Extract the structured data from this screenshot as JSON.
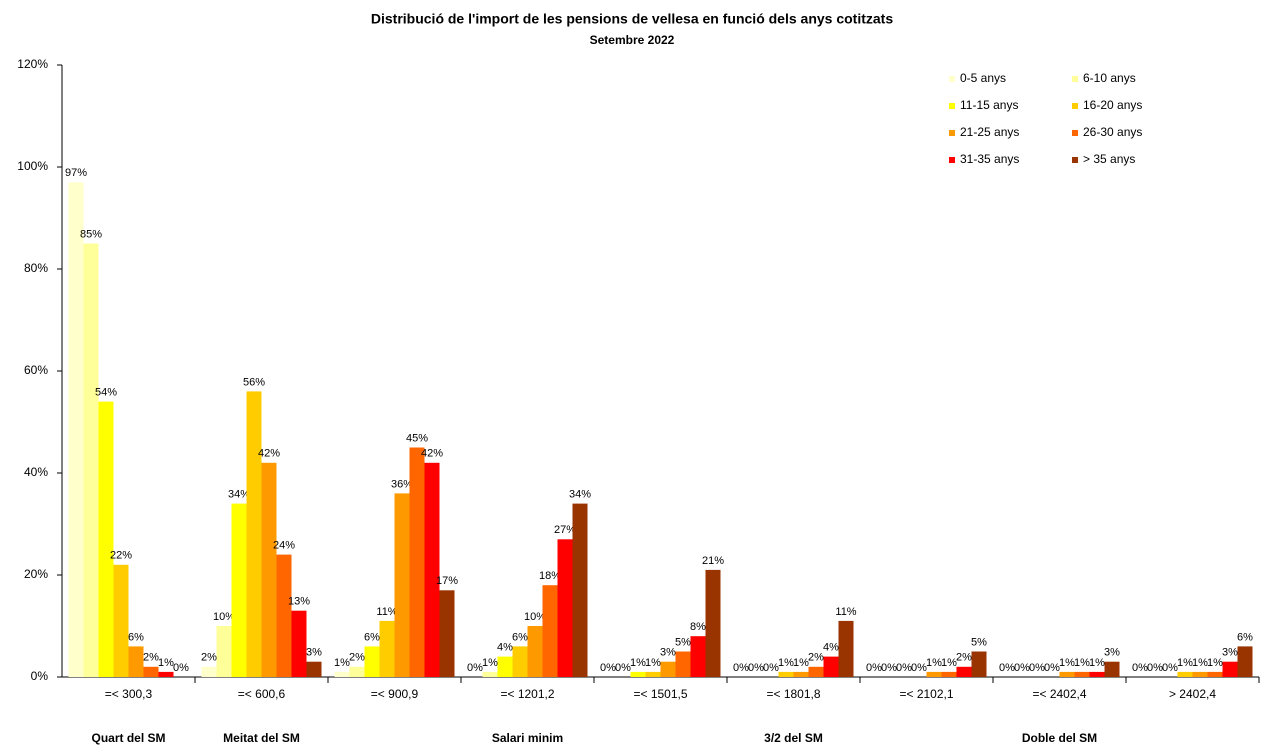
{
  "chart_data": {
    "type": "bar",
    "title": "Distribució de l'import de les pensions de vellesa en funció dels anys cotitzats",
    "subtitle": "Setembre 2022",
    "categories": [
      "=< 300,3",
      "=< 600,6",
      "=< 900,9",
      "=< 1201,2",
      "=< 1501,5",
      "=< 1801,8",
      "=< 2102,1",
      "=< 2402,4",
      "> 2402,4"
    ],
    "group_labels": [
      "Quart del SM",
      "Meitat del SM",
      null,
      "Salari minim",
      null,
      "3/2 del SM",
      null,
      "Doble del SM",
      null
    ],
    "series": [
      {
        "name": "0-5 anys",
        "color": "#ffffcc",
        "values": [
          97,
          2,
          1,
          0,
          0,
          0,
          0,
          0,
          0
        ],
        "value_labels": [
          "97%",
          "2%",
          "1%",
          "0%",
          "0%",
          "0%",
          "0%",
          "0%",
          "0%"
        ]
      },
      {
        "name": "6-10 anys",
        "color": "#ffff99",
        "values": [
          85,
          10,
          2,
          1,
          0,
          0,
          0,
          0,
          0
        ],
        "value_labels": [
          "85%",
          "10%",
          "2%",
          "1%",
          "0%",
          "0%",
          "0%",
          "0%",
          "0%"
        ]
      },
      {
        "name": "11-15 anys",
        "color": "#ffff00",
        "values": [
          54,
          34,
          6,
          4,
          1,
          0,
          0,
          0,
          0
        ],
        "value_labels": [
          "54%",
          "34%",
          "6%",
          "4%",
          "1%",
          "0%",
          "0%",
          "0%",
          "0%"
        ]
      },
      {
        "name": "16-20 anys",
        "color": "#ffcc00",
        "values": [
          22,
          56,
          11,
          6,
          1,
          1,
          0,
          0,
          1
        ],
        "value_labels": [
          "22%",
          "56%",
          "11%",
          "6%",
          "1%",
          "1%",
          "0%",
          "0%",
          "1%"
        ]
      },
      {
        "name": "21-25 anys",
        "color": "#ff9900",
        "values": [
          6,
          42,
          36,
          10,
          3,
          1,
          1,
          1,
          1
        ],
        "value_labels": [
          "6%",
          "42%",
          "36%",
          "10%",
          "3%",
          "1%",
          "1%",
          "1%",
          "1%"
        ]
      },
      {
        "name": "26-30 anys",
        "color": "#ff6600",
        "values": [
          2,
          24,
          45,
          18,
          5,
          2,
          1,
          1,
          1
        ],
        "value_labels": [
          "2%",
          "24%",
          "45%",
          "18%",
          "5%",
          "2%",
          "1%",
          "1%",
          "1%"
        ]
      },
      {
        "name": "31-35 anys",
        "color": "#ff0000",
        "values": [
          1,
          13,
          42,
          27,
          8,
          4,
          2,
          1,
          3
        ],
        "value_labels": [
          "1%",
          "13%",
          "42%",
          "27%",
          "8%",
          "4%",
          "2%",
          "1%",
          "3%"
        ]
      },
      {
        "name": "> 35 anys",
        "color": "#993300",
        "values": [
          0,
          3,
          17,
          34,
          21,
          11,
          5,
          3,
          6
        ],
        "value_labels": [
          "0%",
          "3%",
          "17%",
          "34%",
          "21%",
          "11%",
          "5%",
          "3%",
          "6%"
        ]
      }
    ],
    "ylim": [
      0,
      120
    ],
    "yticks": [
      {
        "value": 0,
        "label": "0%"
      },
      {
        "value": 20,
        "label": "20%"
      },
      {
        "value": 40,
        "label": "40%"
      },
      {
        "value": 60,
        "label": "60%"
      },
      {
        "value": 80,
        "label": "80%"
      },
      {
        "value": 100,
        "label": "100%"
      },
      {
        "value": 120,
        "label": "120%"
      }
    ],
    "grid": false,
    "legend": "top-right"
  }
}
